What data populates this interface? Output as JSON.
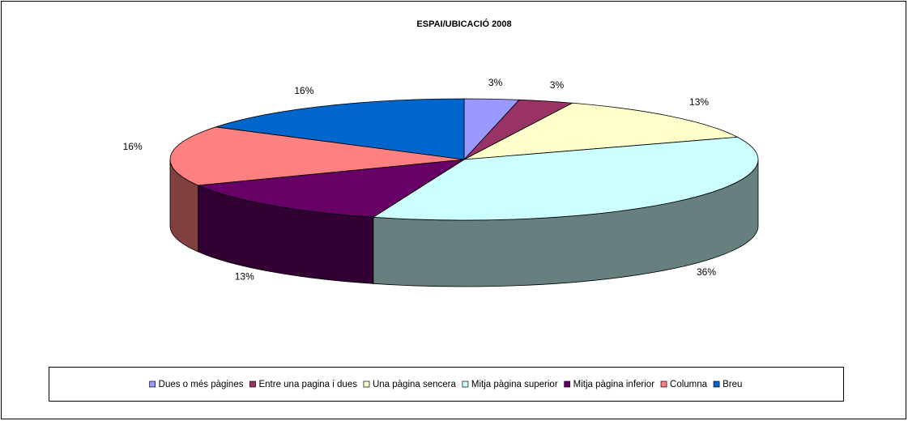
{
  "chart_data": {
    "type": "pie",
    "title": "ESPAI/UBICACIÓ 2008",
    "categories": [
      "Dues o més pàgines",
      "Entre una pagina i dues",
      "Una pàgina sencera",
      "Mitja pàgina superior",
      "Mitja pàgina inferior",
      "Columna",
      "Breu"
    ],
    "values": [
      3,
      3,
      13,
      36,
      13,
      16,
      16
    ],
    "value_labels": [
      "3%",
      "3%",
      "13%",
      "36%",
      "13%",
      "16%",
      "16%"
    ],
    "colors": [
      "#9999ff",
      "#993366",
      "#ffffcc",
      "#ccffff",
      "#660066",
      "#ff8080",
      "#0066cc"
    ],
    "legend": "bottom"
  }
}
